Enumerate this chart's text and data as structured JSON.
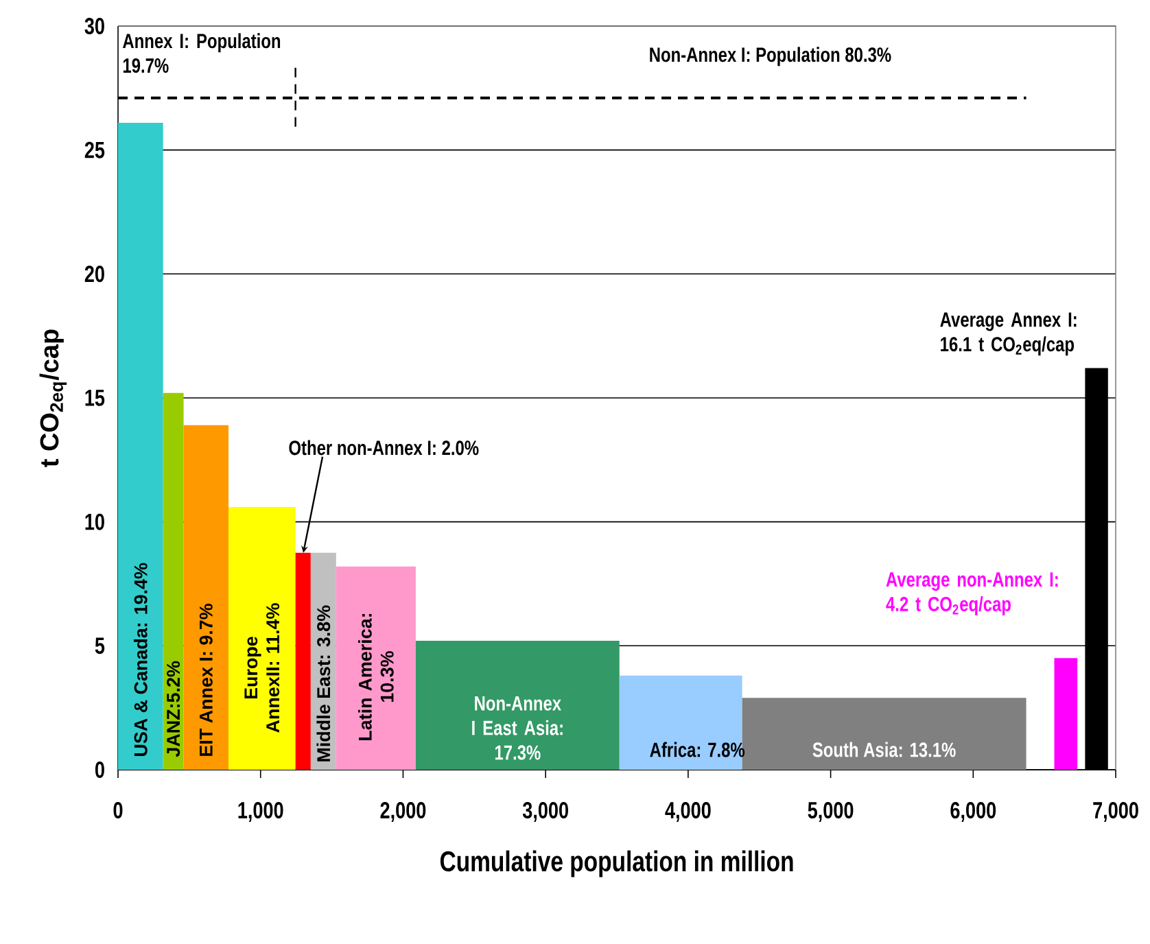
{
  "chart_data": {
    "type": "histogram",
    "xlabel": "Cumulative population in million",
    "ylabel": "t CO$_{2eq}$/cap",
    "bins": [
      0,
      316,
      460,
      775,
      1245,
      1352,
      1530,
      2089,
      3518,
      4379,
      6372,
      6569,
      6731,
      6785,
      6946
    ],
    "values": [
      26.1,
      15.2,
      13.9,
      10.6,
      8.75,
      8.75,
      8.2,
      5.2,
      3.8,
      2.9,
      null,
      4.5,
      null,
      16.2
    ],
    "colors": [
      "#33cccc",
      "#99cc00",
      "#ff9900",
      "#ffff00",
      "#ff0000",
      "#c0c0c0",
      "#ff99cc",
      "#339966",
      "#99ccff",
      "#808080",
      null,
      "#ff00ff",
      null,
      "#000000"
    ],
    "xlim": [
      0,
      7000
    ],
    "ylim": [
      0,
      30
    ],
    "xticks": [
      0,
      {
        "value": 1000,
        "label": "1,000"
      },
      {
        "value": 2000,
        "label": "2,000"
      },
      {
        "value": 3000,
        "label": "3,000"
      },
      {
        "value": 4000,
        "label": "4,000"
      },
      {
        "value": 5000,
        "label": "5,000"
      },
      {
        "value": 6000,
        "label": "6,000"
      },
      {
        "value": 7000,
        "label": "7,000"
      }
    ],
    "yticks": [
      0,
      5,
      10,
      15,
      20,
      25,
      30
    ],
    "grid": "y",
    "ref_lines": [
      {
        "axis": "y",
        "value": 27.1,
        "line_style": "dashed"
      },
      {
        "axis": "x",
        "value": 1245,
        "line_style": "dashed"
      }
    ],
    "annotations": [
      "Annex I: Population 19.7%",
      "Non-Annex I: Population 80.3%",
      "USA & Canada: 19.4%",
      "JANZ:5.2%",
      "EIT Annex I: 9.7%",
      "Europe AnnexII: 11.4%",
      "Middle East: 3.8%",
      "Latin America: 10.3%",
      "Non-Annex I East Asia: 17.3%",
      "Africa: 7.8%",
      "South Asia: 13.1%",
      {
        "text": "Other non-Annex I: 2.0%",
        "x": 1300,
        "y": 8.75
      },
      "Average Annex I: 16.1 t CO$_{2}$eq/cap",
      "Average non-Annex I: 4.2 t CO$_{2}$eq/cap"
    ]
  }
}
